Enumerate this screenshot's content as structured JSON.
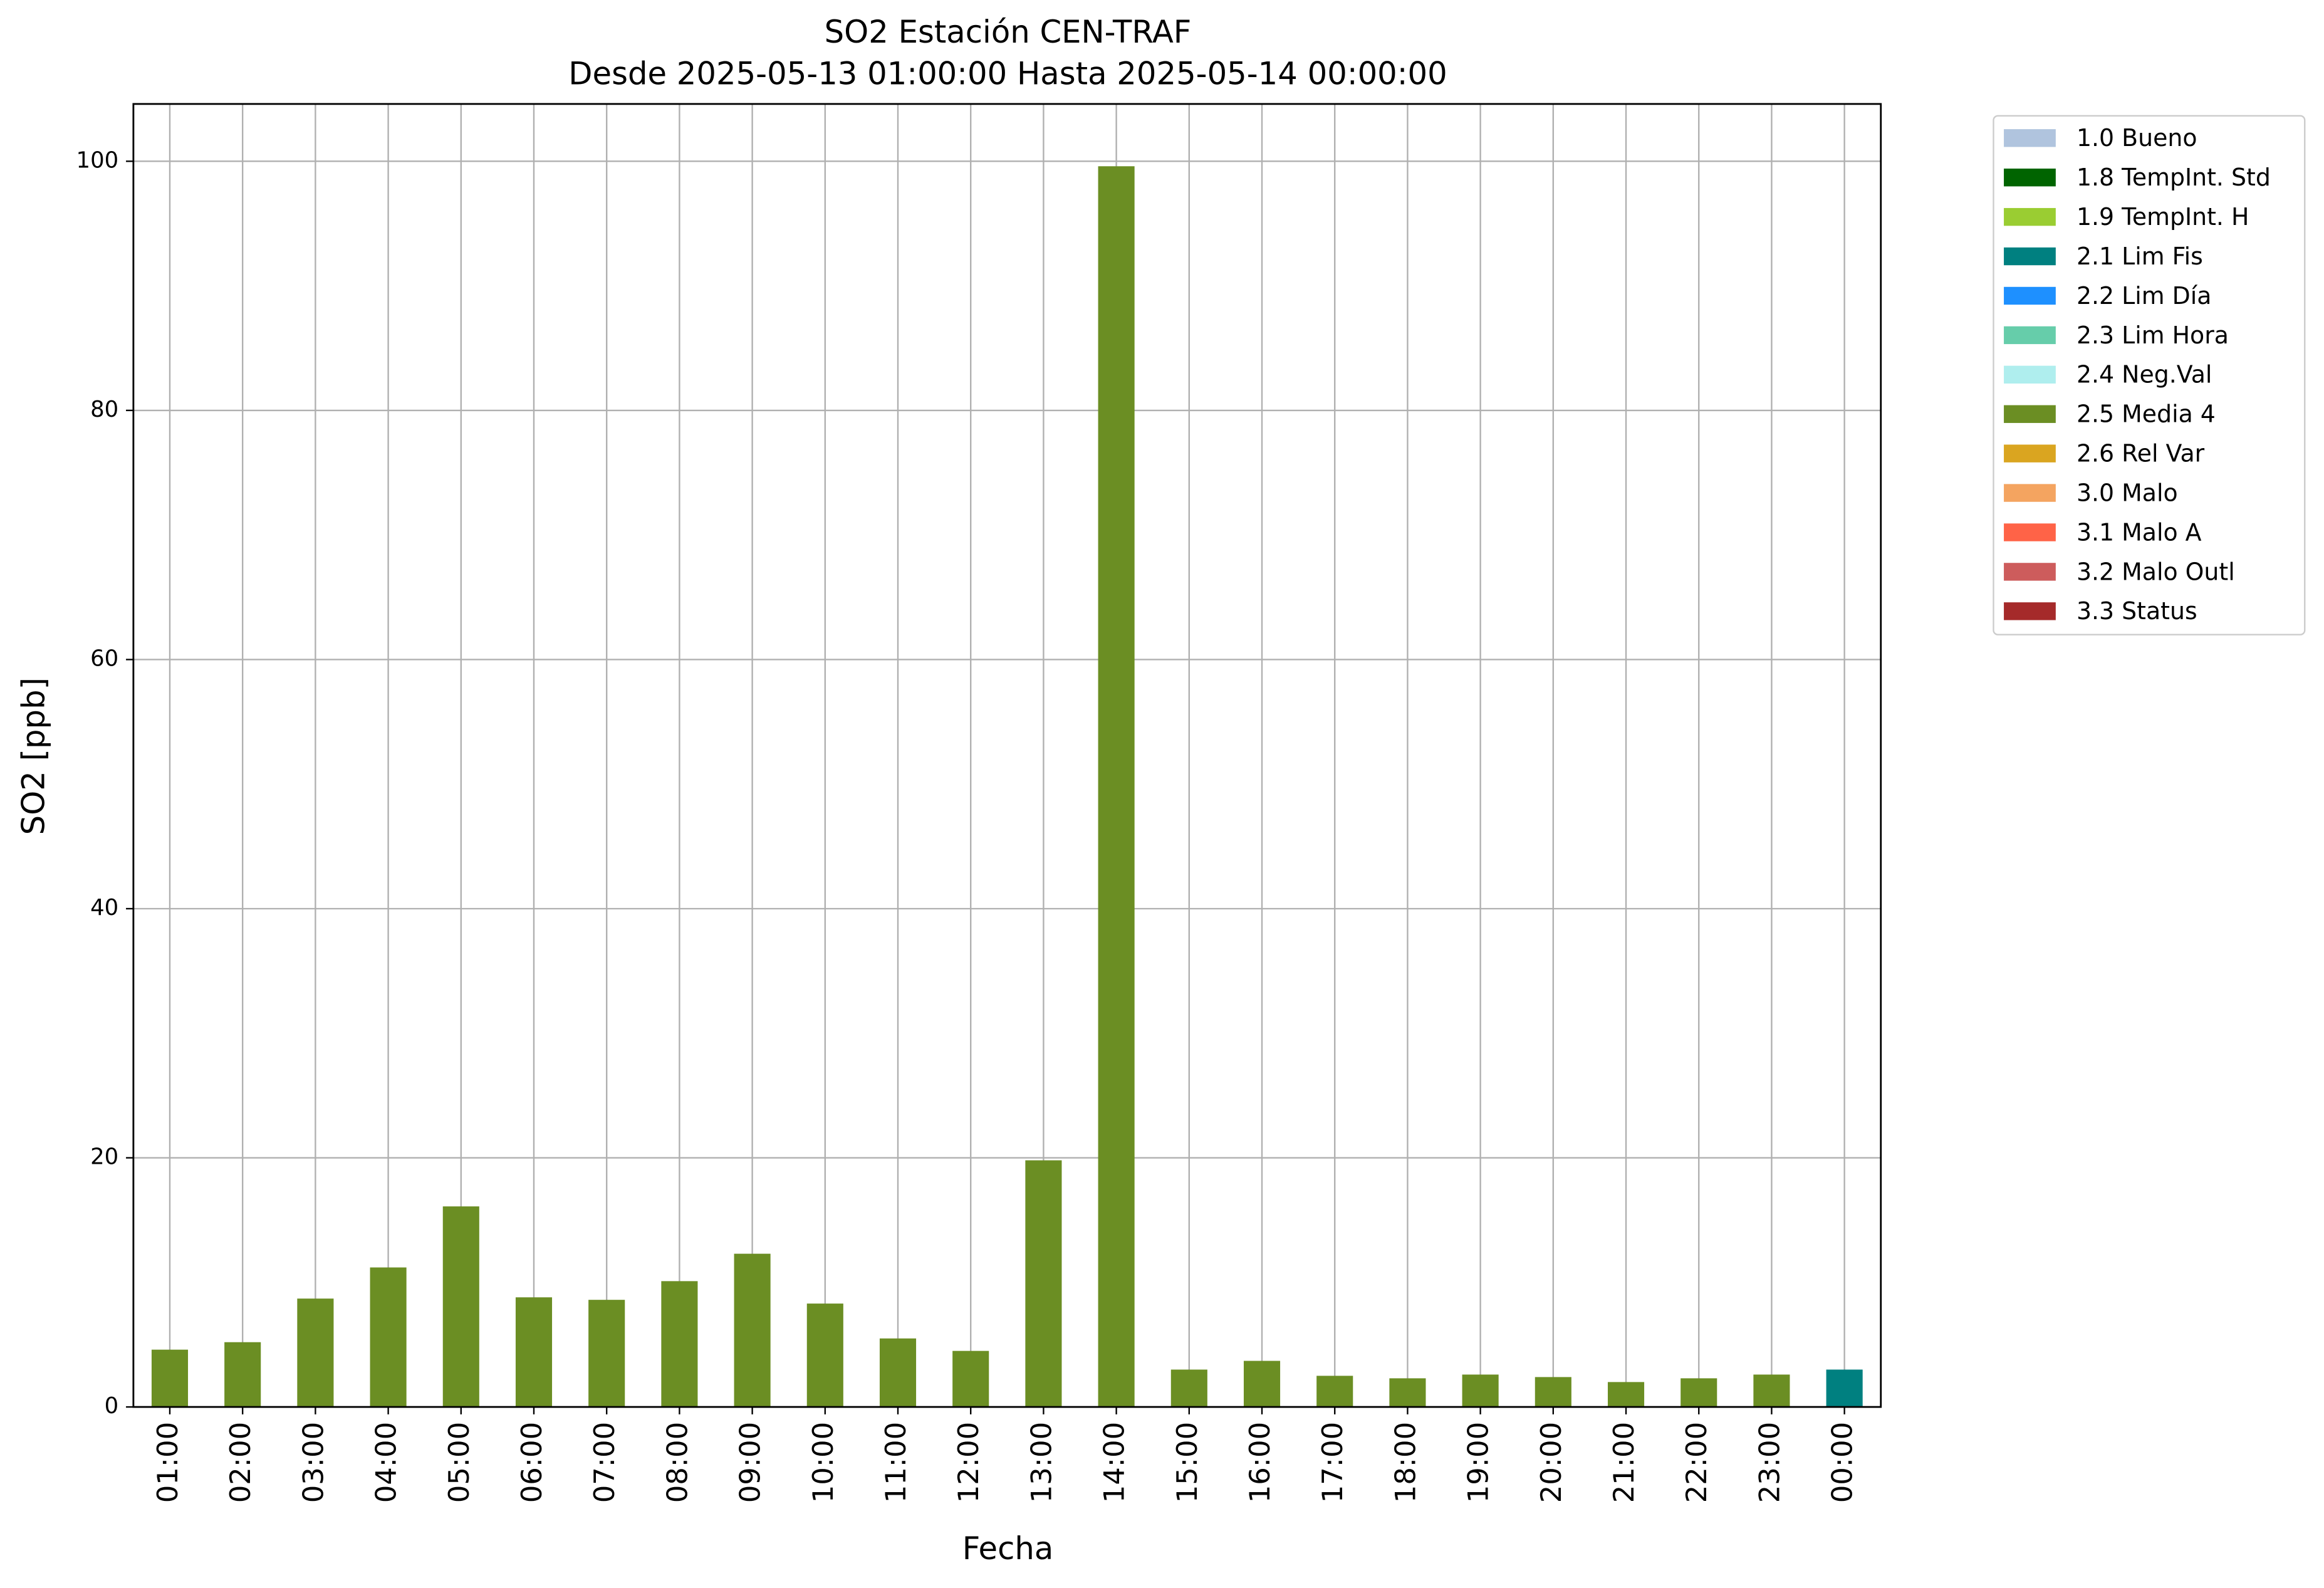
{
  "chart_data": {
    "type": "stacked_bar",
    "title": "SO2 Estación CEN-TRAF",
    "subtitle": "Desde 2025-05-13 01:00:00 Hasta 2025-05-14 00:00:00",
    "x_label": "Fecha",
    "y_label": "SO2 [ppb]",
    "categories": [
      "01:00",
      "02:00",
      "03:00",
      "04:00",
      "05:00",
      "06:00",
      "07:00",
      "08:00",
      "09:00",
      "10:00",
      "11:00",
      "12:00",
      "13:00",
      "14:00",
      "15:00",
      "16:00",
      "17:00",
      "18:00",
      "19:00",
      "20:00",
      "21:00",
      "22:00",
      "23:00",
      "00:00"
    ],
    "series": [
      {
        "name": "1.0 Bueno",
        "color": "#b0c4de",
        "values": [
          null,
          null,
          null,
          null,
          null,
          null,
          null,
          null,
          null,
          null,
          null,
          null,
          null,
          null,
          null,
          null,
          null,
          null,
          null,
          null,
          null,
          null,
          null,
          null
        ]
      },
      {
        "name": "1.8 TempInt. Std",
        "color": "#006400",
        "values": [
          null,
          null,
          null,
          null,
          null,
          null,
          null,
          null,
          null,
          null,
          null,
          null,
          null,
          null,
          null,
          null,
          null,
          null,
          null,
          null,
          null,
          null,
          null,
          null
        ]
      },
      {
        "name": "1.9 TempInt. H",
        "color": "#9acd32",
        "values": [
          null,
          null,
          null,
          null,
          null,
          null,
          null,
          null,
          null,
          null,
          null,
          null,
          null,
          null,
          null,
          null,
          null,
          null,
          null,
          null,
          null,
          null,
          null,
          null
        ]
      },
      {
        "name": "2.1 Lim Fis",
        "color": "#008080",
        "values": [
          null,
          null,
          null,
          null,
          null,
          null,
          null,
          null,
          null,
          null,
          null,
          null,
          null,
          null,
          null,
          null,
          null,
          null,
          null,
          null,
          null,
          null,
          null,
          3.0
        ]
      },
      {
        "name": "2.2 Lim Día",
        "color": "#1e90ff",
        "values": [
          null,
          null,
          null,
          null,
          null,
          null,
          null,
          null,
          null,
          null,
          null,
          null,
          null,
          null,
          null,
          null,
          null,
          null,
          null,
          null,
          null,
          null,
          null,
          null
        ]
      },
      {
        "name": "2.3 Lim Hora",
        "color": "#66cdaa",
        "values": [
          null,
          null,
          null,
          null,
          null,
          null,
          null,
          null,
          null,
          null,
          null,
          null,
          null,
          null,
          null,
          null,
          null,
          null,
          null,
          null,
          null,
          null,
          null,
          null
        ]
      },
      {
        "name": "2.4 Neg.Val",
        "color": "#afeeee",
        "values": [
          null,
          null,
          null,
          null,
          null,
          null,
          null,
          null,
          null,
          null,
          null,
          null,
          null,
          null,
          null,
          null,
          null,
          null,
          null,
          null,
          null,
          null,
          null,
          null
        ]
      },
      {
        "name": "2.5 Media 4",
        "color": "#6b8e23",
        "values": [
          4.6,
          5.2,
          8.7,
          11.2,
          16.1,
          8.8,
          8.6,
          10.1,
          12.3,
          8.3,
          5.5,
          4.5,
          19.8,
          99.6,
          3.0,
          3.7,
          2.5,
          2.3,
          2.6,
          2.4,
          2.0,
          2.3,
          2.6,
          null
        ]
      },
      {
        "name": "2.6 Rel Var",
        "color": "#daa520",
        "values": [
          null,
          null,
          null,
          null,
          null,
          null,
          null,
          null,
          null,
          null,
          null,
          null,
          null,
          null,
          null,
          null,
          null,
          null,
          null,
          null,
          null,
          null,
          null,
          null
        ]
      },
      {
        "name": "3.0 Malo",
        "color": "#f4a460",
        "values": [
          null,
          null,
          null,
          null,
          null,
          null,
          null,
          null,
          null,
          null,
          null,
          null,
          null,
          null,
          null,
          null,
          null,
          null,
          null,
          null,
          null,
          null,
          null,
          null
        ]
      },
      {
        "name": "3.1 Malo A",
        "color": "#ff6347",
        "values": [
          null,
          null,
          null,
          null,
          null,
          null,
          null,
          null,
          null,
          null,
          null,
          null,
          null,
          null,
          null,
          null,
          null,
          null,
          null,
          null,
          null,
          null,
          null,
          null
        ]
      },
      {
        "name": "3.2 Malo Outl",
        "color": "#cd5c5c",
        "values": [
          null,
          null,
          null,
          null,
          null,
          null,
          null,
          null,
          null,
          null,
          null,
          null,
          null,
          null,
          null,
          null,
          null,
          null,
          null,
          null,
          null,
          null,
          null,
          null
        ]
      },
      {
        "name": "3.3 Status",
        "color": "#a52a2a",
        "values": [
          null,
          null,
          null,
          null,
          null,
          null,
          null,
          null,
          null,
          null,
          null,
          null,
          null,
          null,
          null,
          null,
          null,
          null,
          null,
          null,
          null,
          null,
          null,
          null
        ]
      }
    ],
    "ylim": [
      0,
      104.6
    ],
    "yticks": [
      0,
      20,
      40,
      60,
      80,
      100
    ],
    "grid": true
  }
}
